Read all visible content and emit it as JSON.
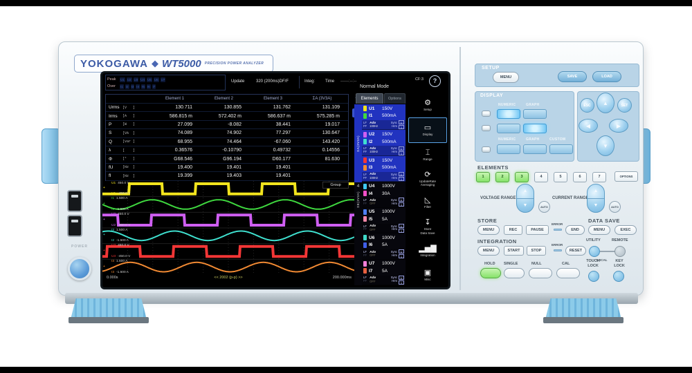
{
  "branding": {
    "maker": "YOKOGAWA",
    "diamond": "◆",
    "model": "WT5000",
    "tagline": "PRECISION POWER ANALYZER"
  },
  "left_side": {
    "power_label": "POWER"
  },
  "screen": {
    "topbar": {
      "peak_label": "Peak",
      "over_label": "Over",
      "peak_items": [
        "U1",
        "U2",
        "U3",
        "U4",
        "U5",
        "U6",
        "U7"
      ],
      "over_items": [
        "I1",
        "I2",
        "I3",
        "I4",
        "I5",
        "I6",
        "I7"
      ],
      "update_label": "Update",
      "update_value": "320 (200ms)DF/F",
      "integ_label": "Integ:",
      "time_label": "Time",
      "time_value": "------:--:--",
      "mode": "Normal Mode",
      "cf": "CF:3",
      "help": "?"
    },
    "table": {
      "headers": [
        "Element 1",
        "Element 2",
        "Element 3",
        "ΣA (3V3A)"
      ],
      "rows": [
        {
          "name": "Urms",
          "unit": "[V   ]",
          "values": [
            "130.711",
            "130.855",
            "131.762",
            "131.109"
          ]
        },
        {
          "name": "Irms",
          "unit": "[A   ]",
          "values": [
            "586.815 m",
            "572.402 m",
            "586.637 m",
            "575.285 m"
          ]
        },
        {
          "name": "P",
          "unit": "[W   ]",
          "values": [
            "27.099",
            "-8.082",
            "38.441",
            "19.017"
          ]
        },
        {
          "name": "S",
          "unit": "[VA  ]",
          "values": [
            "74.089",
            "74.902",
            "77.297",
            "130.647"
          ]
        },
        {
          "name": "Q",
          "unit": "[var ]",
          "values": [
            "68.955",
            "74.464",
            "-67.060",
            "143.420"
          ]
        },
        {
          "name": "λ",
          "unit": "[    ]",
          "values": [
            "0.36576",
            "-0.10790",
            "0.49732",
            "0.14556"
          ]
        },
        {
          "name": "Φ",
          "unit": "[°   ]",
          "values": [
            "G68.546",
            "G96.194",
            "D60.177",
            "81.630"
          ]
        },
        {
          "name": "fU",
          "unit": "[Hz  ]",
          "values": [
            "19.400",
            "19.401",
            "19.401",
            ""
          ]
        },
        {
          "name": "fI",
          "unit": "[Hz  ]",
          "values": [
            "19.399",
            "19.403",
            "19.401",
            ""
          ]
        }
      ],
      "page_up": "▲",
      "page_current": "1",
      "page_dots": [
        "·",
        "·",
        "·"
      ],
      "page_last": "9",
      "page_down": "▼"
    },
    "elements_panel": {
      "tab_elements": "Elements",
      "tab_options": "Options",
      "group_a": "ΣA(3V3A)",
      "group_4": "4",
      "group_b": "ΣB(3V3A)",
      "common": {
        "lf": "LF",
        "ff": "FF",
        "adv": "Adv",
        "sync": "Sync",
        "hrm": "Hrm",
        "tag_u": "U",
        "tag_1": "1"
      },
      "channels": [
        {
          "u": "U1",
          "u_range": "150V",
          "u_color": "#f2e41e",
          "i": "I1",
          "i_range": "500mA",
          "i_color": "#3fd83f",
          "freq": "100Hz",
          "dim": false
        },
        {
          "u": "U2",
          "u_range": "150V",
          "u_color": "#cf5ff2",
          "i": "I2",
          "i_range": "500mA",
          "i_color": "#3fe0cf",
          "freq": "100Hz",
          "dim": false
        },
        {
          "u": "U3",
          "u_range": "150V",
          "u_color": "#f23636",
          "i": "I3",
          "i_range": "500mA",
          "i_color": "#f28a33",
          "freq": "100Hz",
          "dim": false
        },
        {
          "u": "U4",
          "u_range": "1000V",
          "u_color": "#3fc8f2",
          "i": "I4",
          "i_range": "30A",
          "i_color": "#f24fc8",
          "freq": "OFF",
          "dim": true
        },
        {
          "u": "U5",
          "u_range": "1000V",
          "u_color": "#4f7ff2",
          "i": "I5",
          "i_range": "5A",
          "i_color": "#f287a7",
          "freq": "OFF",
          "dim": true
        },
        {
          "u": "U6",
          "u_range": "1000V",
          "u_color": "#3fd8c8",
          "i": "I6",
          "i_range": "5A",
          "i_color": "#3f5fe8",
          "freq": "OFF",
          "dim": true
        },
        {
          "u": "U7",
          "u_range": "1000V",
          "u_color": "#f27fd8",
          "i": "I7",
          "i_range": "5A",
          "i_color": "#e8603f",
          "freq": "OFF",
          "dim": true
        }
      ]
    },
    "icon_bar": [
      {
        "name": "setup",
        "glyph": "⚙",
        "label": "Setup",
        "selected": false
      },
      {
        "name": "display",
        "glyph": "▭",
        "label": "Display",
        "selected": true
      },
      {
        "name": "range",
        "glyph": "⌶",
        "label": "Range",
        "selected": false
      },
      {
        "name": "update-rate",
        "glyph": "⟳",
        "label": "UpdateRate\nAveraging",
        "selected": false
      },
      {
        "name": "filter",
        "glyph": "◺",
        "label": "Filter",
        "selected": false
      },
      {
        "name": "store-data-save",
        "glyph": "↧",
        "label": "Store\nData Save",
        "selected": false
      },
      {
        "name": "integration",
        "glyph": "▂▅▇",
        "label": "Integration",
        "selected": false
      },
      {
        "name": "misc",
        "glyph": "▣",
        "label": "Misc",
        "selected": false
      }
    ],
    "waveform": {
      "group_tag": "Group",
      "t_start": "0.000s",
      "t_pp": "<< 2002 (p-p) >>",
      "t_end": "200.000ms",
      "channels": [
        {
          "id": "U1",
          "top": "450.0 V",
          "bottom": "-450.0 V",
          "color": "#f2e41e",
          "shape": "square"
        },
        {
          "id": "I1",
          "top": "1.500 A",
          "bottom": "-1.500 A",
          "color": "#3fd83f",
          "shape": "sine"
        },
        {
          "id": "U2",
          "top": "450.0 V",
          "bottom": "-450.0 V",
          "color": "#cf5ff2",
          "shape": "square"
        },
        {
          "id": "I2",
          "top": "1.500 A",
          "bottom": "-1.500 A",
          "color": "#3fe0cf",
          "shape": "sine"
        },
        {
          "id": "U3",
          "top": "450.0 V",
          "bottom": "-450.0 V",
          "color": "#f23636",
          "shape": "square"
        },
        {
          "id": "I3",
          "top": "1.500 A",
          "bottom": "-1.500 A",
          "color": "#f28a33",
          "shape": "sine"
        }
      ]
    }
  },
  "panel": {
    "setup": {
      "title": "SETUP",
      "menu": "MENU",
      "save": "SAVE",
      "load": "LOAD"
    },
    "display": {
      "title": "DISPLAY",
      "col_numeric": "NUMERIC",
      "col_graph": "GRAPH",
      "row2_numeric": "NUMERIC",
      "row2_graph": "GRAPH",
      "row2_custom": "CUSTOM"
    },
    "nav": {
      "esc": "ESC",
      "set": "SET",
      "up": "▲",
      "down": "▼",
      "left": "◀",
      "right": "▶"
    },
    "elements": {
      "title": "ELEMENTS",
      "buttons": [
        {
          "label": "1",
          "lit": true
        },
        {
          "label": "2",
          "lit": true
        },
        {
          "label": "3",
          "lit": true
        },
        {
          "label": "4",
          "lit": false
        },
        {
          "label": "5",
          "lit": false
        },
        {
          "label": "6",
          "lit": false
        },
        {
          "label": "7",
          "lit": false
        }
      ],
      "options": "OPTIONS"
    },
    "ranges": {
      "voltage": "VOLTAGE RANGE",
      "current": "CURRENT RANGE",
      "auto": "AUTO"
    },
    "store": {
      "title": "STORE",
      "menu": "MENU",
      "rec": "REC",
      "pause": "PAUSE",
      "error": "ERROR",
      "end": "END"
    },
    "data_save": {
      "title": "DATA SAVE",
      "menu": "MENU",
      "exec": "EXEC"
    },
    "integration": {
      "title": "INTEGRATION",
      "menu": "MENU",
      "start": "START",
      "stop": "STOP",
      "error": "ERROR",
      "reset": "RESET"
    },
    "utility": {
      "utility": "UTILITY",
      "remote": "REMOTE",
      "local": "LOCAL"
    },
    "bottom": {
      "hold": "HOLD",
      "single": "SINGLE",
      "null": "NULL",
      "cal": "CAL",
      "touch_lock": "TOUCH\nLOCK",
      "key_lock": "KEY\nLOCK"
    }
  }
}
